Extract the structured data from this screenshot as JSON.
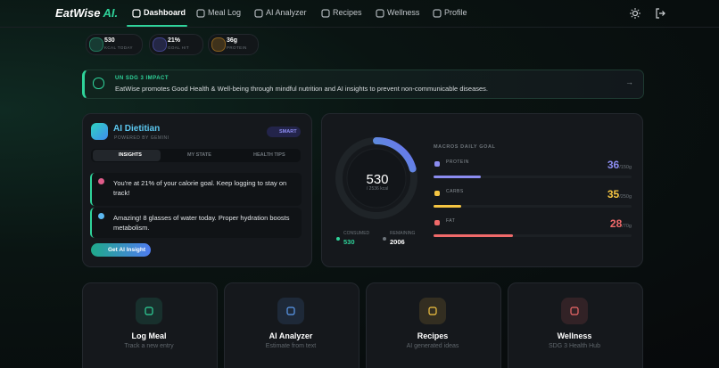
{
  "nav": {
    "logo": "EatWise",
    "logo_accent": "AI.",
    "items": [
      "Dashboard",
      "Meal Log",
      "AI Analyzer",
      "Recipes",
      "Wellness",
      "Profile"
    ]
  },
  "stats": [
    {
      "value": "530",
      "label": "KCAL TODAY"
    },
    {
      "value": "21%",
      "label": "GOAL HIT"
    },
    {
      "value": "36g",
      "label": "PROTEIN"
    }
  ],
  "banner": {
    "title": "UN SDG 3 IMPACT",
    "text": "EatWise promotes Good Health & Well-being through mindful nutrition and AI insights to prevent non-communicable diseases."
  },
  "dietitian": {
    "title": "AI Dietitian",
    "subtitle": "POWERED BY GEMINI",
    "badge": "SMART",
    "tabs": [
      "INSIGHTS",
      "MY STATE",
      "HEALTH TIPS"
    ],
    "insights": [
      "You're at 21% of your calorie goal. Keep logging to stay on track!",
      "Amazing! 8 glasses of water today. Proper hydration boosts metabolism."
    ],
    "button": "Get AI Insight"
  },
  "calories": {
    "value": 530,
    "goal": 2536,
    "goal_label": "/ 2536 kcal",
    "consumed": {
      "label": "CONSUMED",
      "value": 530
    },
    "remaining": {
      "label": "REMAINING",
      "value": 2006
    }
  },
  "macros": {
    "title": "MACROS DAILY GOAL",
    "items": [
      {
        "name": "PROTEIN",
        "value": 36,
        "goal": 150,
        "goal_label": "/150g",
        "color": "#8b8cf0"
      },
      {
        "name": "CARBS",
        "value": 35,
        "goal": 250,
        "goal_label": "/250g",
        "color": "#f5c542"
      },
      {
        "name": "FAT",
        "value": 28,
        "goal": 70,
        "goal_label": "/70g",
        "color": "#f06a6a"
      }
    ]
  },
  "actions": [
    {
      "title": "Log Meal",
      "subtitle": "Track a new entry"
    },
    {
      "title": "AI Analyzer",
      "subtitle": "Estimate from text"
    },
    {
      "title": "Recipes",
      "subtitle": "AI generated ideas"
    },
    {
      "title": "Wellness",
      "subtitle": "SDG 3 Health Hub"
    }
  ]
}
